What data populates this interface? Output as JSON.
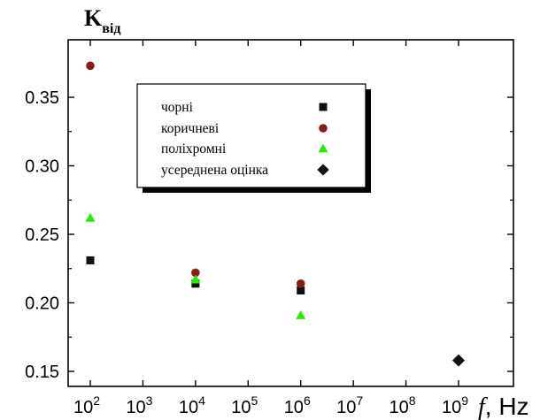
{
  "chart_data": {
    "type": "scatter",
    "title": "",
    "ylabel_main": "K",
    "ylabel_sub": "від",
    "xlabel_italic": "f",
    "xlabel_unit": ", Hz",
    "x_scale": "log",
    "xlim": [
      100,
      1000000000
    ],
    "ylim": [
      0.14,
      0.38
    ],
    "grid": false,
    "legend_position": "top-left",
    "y_ticks": [
      {
        "value": 0.15,
        "label": "0.15"
      },
      {
        "value": 0.2,
        "label": "0.20"
      },
      {
        "value": 0.25,
        "label": "0.25"
      },
      {
        "value": 0.3,
        "label": "0.30"
      },
      {
        "value": 0.35,
        "label": "0.35"
      }
    ],
    "x_ticks": [
      {
        "value": 100,
        "base": "10",
        "exp": "2"
      },
      {
        "value": 1000,
        "base": "10",
        "exp": "3"
      },
      {
        "value": 10000,
        "base": "10",
        "exp": "4"
      },
      {
        "value": 100000,
        "base": "10",
        "exp": "5"
      },
      {
        "value": 1000000,
        "base": "10",
        "exp": "6"
      },
      {
        "value": 10000000,
        "base": "10",
        "exp": "7"
      },
      {
        "value": 100000000,
        "base": "10",
        "exp": "8"
      },
      {
        "value": 1000000000,
        "base": "10",
        "exp": "9"
      }
    ],
    "series": [
      {
        "name": "чорні",
        "marker": "square",
        "color": "#111111",
        "points": [
          {
            "x": 100,
            "y": 0.231
          },
          {
            "x": 10000,
            "y": 0.214
          },
          {
            "x": 1000000,
            "y": 0.209
          }
        ]
      },
      {
        "name": "коричневі",
        "marker": "circle",
        "color": "#8b1a1a",
        "points": [
          {
            "x": 100,
            "y": 0.373
          },
          {
            "x": 10000,
            "y": 0.222
          },
          {
            "x": 1000000,
            "y": 0.214
          }
        ]
      },
      {
        "name": "поліхромні",
        "marker": "triangle",
        "color": "#22ee00",
        "points": [
          {
            "x": 100,
            "y": 0.262
          },
          {
            "x": 10000,
            "y": 0.217
          },
          {
            "x": 1000000,
            "y": 0.191
          }
        ]
      },
      {
        "name": "усереднена оцінка",
        "marker": "diamond",
        "color": "#111111",
        "points": [
          {
            "x": 1000000000,
            "y": 0.158
          }
        ]
      }
    ]
  }
}
